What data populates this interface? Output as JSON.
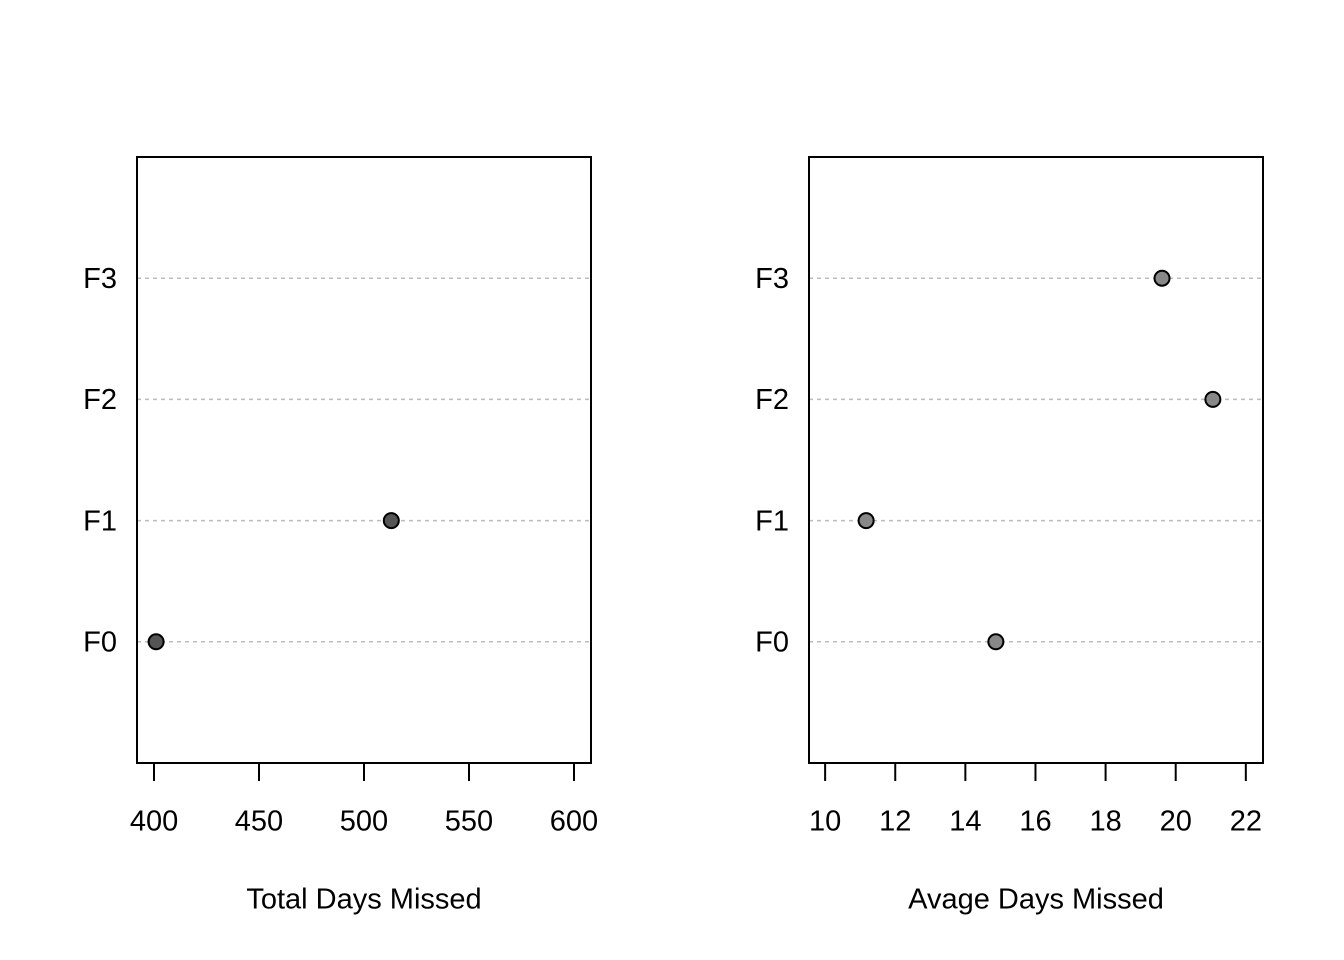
{
  "chart_data": [
    {
      "type": "dot",
      "xlabel": "Total Days Missed",
      "categories": [
        "F0",
        "F1",
        "F2",
        "F3"
      ],
      "values": [
        401,
        513,
        null,
        null
      ],
      "color": "#555555",
      "xlim": [
        391.9,
        608.1
      ],
      "xticks": [
        400,
        450,
        500,
        550,
        600
      ],
      "grid": true
    },
    {
      "type": "dot",
      "xlabel": "Avage Days Missed",
      "categories": [
        "F0",
        "F1",
        "F2",
        "F3"
      ],
      "values": [
        14.87,
        11.17,
        21.06,
        19.61
      ],
      "color": "#888888",
      "xlim": [
        9.54,
        22.49
      ],
      "xticks": [
        10,
        12,
        14,
        16,
        18,
        20,
        22
      ],
      "grid": true
    }
  ]
}
